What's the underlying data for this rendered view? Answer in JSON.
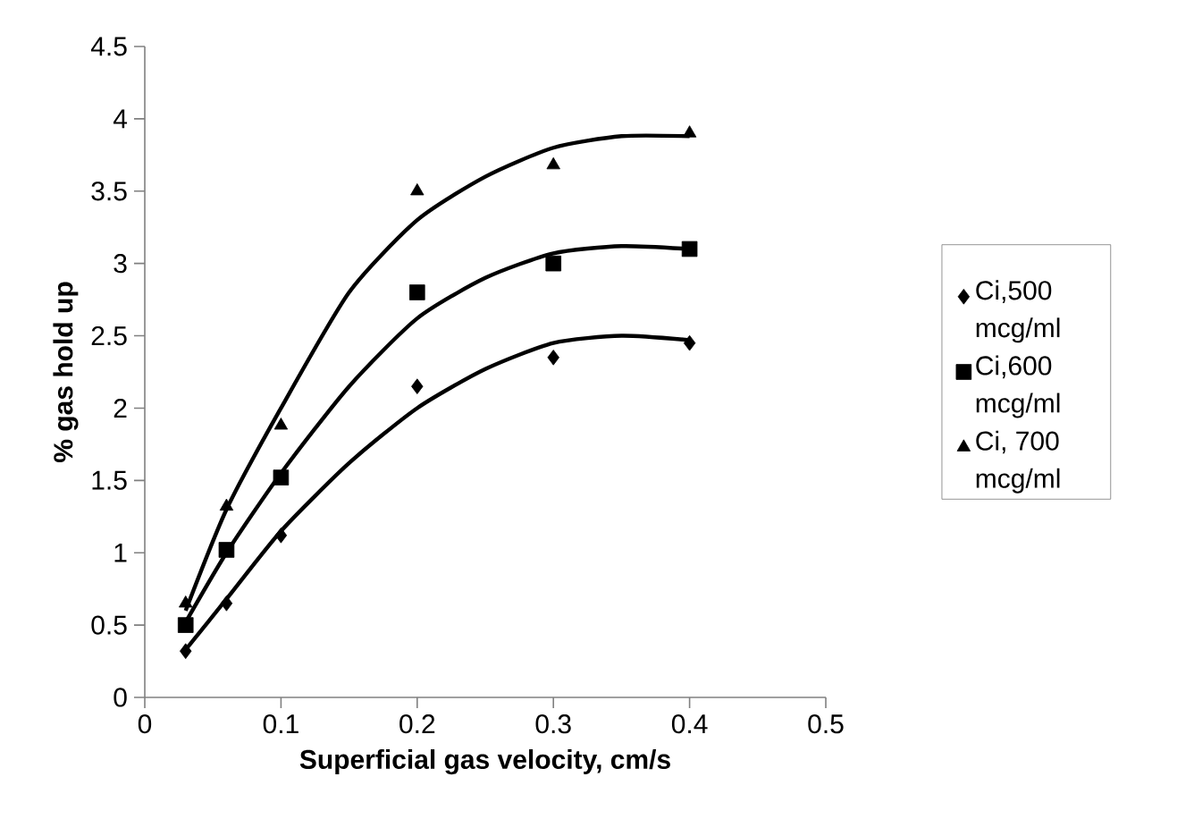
{
  "chart_data": {
    "type": "scatter",
    "xlabel": "Superficial gas velocity, cm/s",
    "ylabel": "% gas hold up",
    "x": [
      0.03,
      0.06,
      0.1,
      0.2,
      0.3,
      0.4
    ],
    "series": [
      {
        "name": "Ci,500 mcg/ml",
        "color": "#000000",
        "marker": "diamond",
        "values": [
          0.32,
          0.65,
          1.12,
          2.15,
          2.35,
          2.45
        ]
      },
      {
        "name": "Ci,600 mcg/ml",
        "color": "#000000",
        "marker": "square",
        "values": [
          0.5,
          1.02,
          1.52,
          2.8,
          3.0,
          3.1
        ]
      },
      {
        "name": "Ci, 700 mcg/ml",
        "color": "#000000",
        "marker": "triangle",
        "values": [
          0.65,
          1.32,
          1.88,
          3.5,
          3.68,
          3.9
        ]
      },
      {
        "type": "line",
        "color": "#000000",
        "marker": "none",
        "line_style": "solid",
        "x": [
          0.03,
          0.06,
          0.1,
          0.15,
          0.2,
          0.25,
          0.3,
          0.35,
          0.4
        ],
        "values": [
          0.33,
          0.68,
          1.15,
          1.62,
          2.0,
          2.27,
          2.45,
          2.5,
          2.47
        ]
      },
      {
        "type": "line",
        "color": "#000000",
        "marker": "none",
        "line_style": "solid",
        "x": [
          0.03,
          0.06,
          0.1,
          0.15,
          0.2,
          0.25,
          0.3,
          0.35,
          0.4
        ],
        "values": [
          0.52,
          1.0,
          1.55,
          2.15,
          2.62,
          2.9,
          3.07,
          3.12,
          3.1
        ]
      },
      {
        "type": "line",
        "color": "#000000",
        "marker": "none",
        "line_style": "solid",
        "x": [
          0.03,
          0.06,
          0.1,
          0.15,
          0.2,
          0.25,
          0.3,
          0.35,
          0.4
        ],
        "values": [
          0.6,
          1.3,
          2.0,
          2.8,
          3.3,
          3.6,
          3.8,
          3.88,
          3.88
        ]
      }
    ],
    "xlim": [
      0,
      0.5
    ],
    "xticks": [
      0,
      0.1,
      0.2,
      0.3,
      0.4,
      0.5
    ],
    "ylim": [
      0,
      4.5
    ],
    "yticks": [
      0,
      0.5,
      1,
      1.5,
      2,
      2.5,
      3,
      3.5,
      4,
      4.5
    ],
    "grid": false,
    "legend": "right"
  }
}
